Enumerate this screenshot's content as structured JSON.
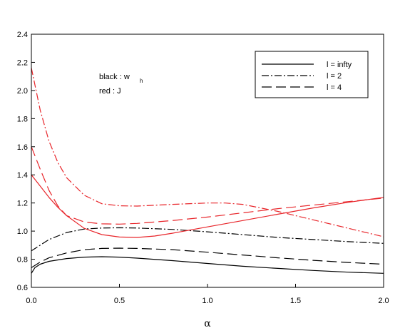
{
  "chart_data": {
    "type": "line",
    "xlabel": "α",
    "ylabel": "",
    "xlim": [
      0,
      2
    ],
    "ylim": [
      0.6,
      2.4
    ],
    "xticks": [
      "0.0",
      "0.5",
      "1.0",
      "1.5",
      "2.0"
    ],
    "yticks": [
      "0.6",
      "0.8",
      "1.0",
      "1.2",
      "1.4",
      "1.6",
      "1.8",
      "2.0",
      "2.2",
      "2.4"
    ],
    "grid": false,
    "legend_position": "top-right",
    "annotations": {
      "black_label": "black : w",
      "black_subscript": "h",
      "red_label": "red : J"
    },
    "legend": [
      {
        "label": "l = infty",
        "style": "solid"
      },
      {
        "label": "l = 2",
        "style": "dashdot"
      },
      {
        "label": "l = 4",
        "style": "dashed"
      }
    ],
    "colors": {
      "black": "#000000",
      "red": "#e8252a"
    },
    "series": [
      {
        "color": "black",
        "style": "solid",
        "x": [
          0,
          0.02,
          0.05,
          0.1,
          0.2,
          0.3,
          0.4,
          0.5,
          0.6,
          0.8,
          1.0,
          1.2,
          1.4,
          1.6,
          1.8,
          2.0
        ],
        "y": [
          0.7,
          0.74,
          0.765,
          0.785,
          0.805,
          0.815,
          0.818,
          0.815,
          0.808,
          0.79,
          0.77,
          0.75,
          0.735,
          0.72,
          0.708,
          0.7
        ]
      },
      {
        "color": "black",
        "style": "dashdot",
        "x": [
          0,
          0.05,
          0.1,
          0.2,
          0.3,
          0.4,
          0.5,
          0.6,
          0.8,
          1.0,
          1.2,
          1.4,
          1.6,
          1.8,
          2.0
        ],
        "y": [
          0.86,
          0.9,
          0.94,
          0.99,
          1.015,
          1.022,
          1.024,
          1.022,
          1.012,
          0.995,
          0.975,
          0.955,
          0.94,
          0.925,
          0.913
        ]
      },
      {
        "color": "black",
        "style": "dashed",
        "x": [
          0,
          0.05,
          0.1,
          0.2,
          0.3,
          0.4,
          0.5,
          0.6,
          0.8,
          1.0,
          1.2,
          1.4,
          1.6,
          1.8,
          2.0
        ],
        "y": [
          0.74,
          0.78,
          0.81,
          0.845,
          0.868,
          0.877,
          0.879,
          0.877,
          0.868,
          0.85,
          0.83,
          0.81,
          0.792,
          0.777,
          0.765
        ]
      },
      {
        "color": "red",
        "style": "solid",
        "x": [
          0,
          0.05,
          0.1,
          0.15,
          0.2,
          0.3,
          0.4,
          0.5,
          0.6,
          0.7,
          0.8,
          1.0,
          1.2,
          1.4,
          1.6,
          1.8,
          2.0
        ],
        "y": [
          1.4,
          1.32,
          1.24,
          1.17,
          1.11,
          1.02,
          0.975,
          0.958,
          0.955,
          0.965,
          0.985,
          1.03,
          1.075,
          1.12,
          1.165,
          1.205,
          1.24
        ]
      },
      {
        "color": "red",
        "style": "dashdot",
        "x": [
          0,
          0.05,
          0.1,
          0.15,
          0.2,
          0.3,
          0.4,
          0.5,
          0.6,
          0.8,
          1.0,
          1.1,
          1.2,
          1.4,
          1.6,
          1.8,
          2.0
        ],
        "y": [
          2.16,
          1.86,
          1.64,
          1.49,
          1.38,
          1.255,
          1.195,
          1.18,
          1.178,
          1.19,
          1.2,
          1.2,
          1.19,
          1.14,
          1.08,
          1.02,
          0.96
        ]
      },
      {
        "color": "red",
        "style": "dashed",
        "x": [
          0,
          0.05,
          0.1,
          0.15,
          0.2,
          0.3,
          0.4,
          0.5,
          0.6,
          0.8,
          1.0,
          1.2,
          1.4,
          1.6,
          1.8,
          2.0
        ],
        "y": [
          1.6,
          1.44,
          1.29,
          1.18,
          1.11,
          1.065,
          1.052,
          1.05,
          1.055,
          1.075,
          1.1,
          1.13,
          1.16,
          1.185,
          1.21,
          1.235
        ]
      }
    ]
  }
}
